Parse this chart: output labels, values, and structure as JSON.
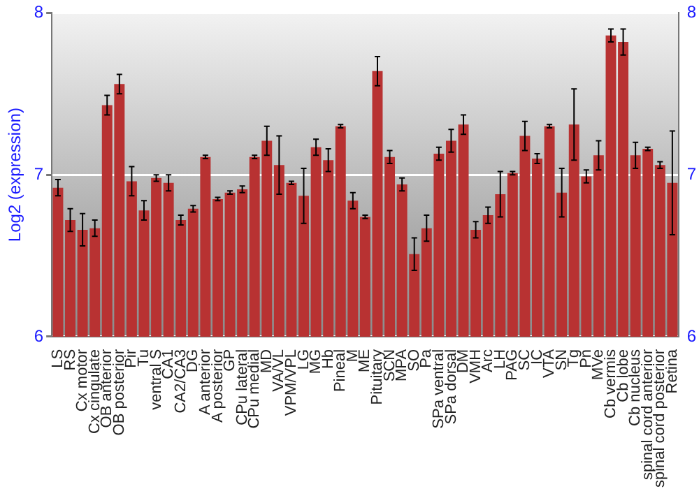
{
  "chart_data": {
    "type": "bar",
    "ylabel": "Log2 (expression)",
    "categories": [
      "LS",
      "RS",
      "Cx motor",
      "Cx cingulate",
      "OB anterior",
      "OB posterior",
      "Pir",
      "Tu",
      "ventral S",
      "CA1",
      "CA2/CA3",
      "DG",
      "A anterior",
      "A posterior",
      "GP",
      "CPu lateral",
      "CPu medial",
      "MD",
      "VA/VL",
      "VPM/VPL",
      "LG",
      "MG",
      "Hb",
      "Pineal",
      "M",
      "ME",
      "Pituitary",
      "SCN",
      "MPA",
      "SO",
      "Pa",
      "SPa ventral",
      "SPa dorsal",
      "DM",
      "VMH",
      "Arc",
      "LH",
      "PAG",
      "SC",
      "IC",
      "VTA",
      "SN",
      "Tg",
      "Pn",
      "MVe",
      "Cb vermis",
      "Cb lobe",
      "Cb nucleus",
      "spinal cord anterior",
      "spinal cord posterior",
      "Retina"
    ],
    "values": [
      6.92,
      6.72,
      6.66,
      6.67,
      7.43,
      7.56,
      6.96,
      6.78,
      6.98,
      6.95,
      6.72,
      6.79,
      7.11,
      6.85,
      6.89,
      6.91,
      7.11,
      7.21,
      7.06,
      6.95,
      6.87,
      7.17,
      7.09,
      7.3,
      6.84,
      6.74,
      7.64,
      7.11,
      6.94,
      6.51,
      6.67,
      7.13,
      7.21,
      7.31,
      6.66,
      6.75,
      6.88,
      7.01,
      7.24,
      7.1,
      7.3,
      6.89,
      7.31,
      6.99,
      7.12,
      7.86,
      7.82,
      7.12,
      7.16,
      7.06,
      6.95
    ],
    "errors": [
      0.05,
      0.07,
      0.1,
      0.05,
      0.06,
      0.06,
      0.09,
      0.06,
      0.02,
      0.05,
      0.03,
      0.02,
      0.01,
      0.01,
      0.01,
      0.02,
      0.01,
      0.09,
      0.18,
      0.01,
      0.17,
      0.05,
      0.07,
      0.01,
      0.05,
      0.01,
      0.09,
      0.04,
      0.04,
      0.1,
      0.08,
      0.04,
      0.07,
      0.06,
      0.05,
      0.05,
      0.14,
      0.01,
      0.09,
      0.03,
      0.01,
      0.15,
      0.22,
      0.04,
      0.09,
      0.04,
      0.08,
      0.08,
      0.01,
      0.02,
      0.32
    ],
    "color": "#b83232",
    "ylim": [
      6,
      8
    ],
    "yticks": [
      6,
      7,
      8
    ],
    "y2lim": [
      6,
      8
    ],
    "y2ticks": [
      6,
      7,
      8
    ],
    "grid": "y"
  }
}
